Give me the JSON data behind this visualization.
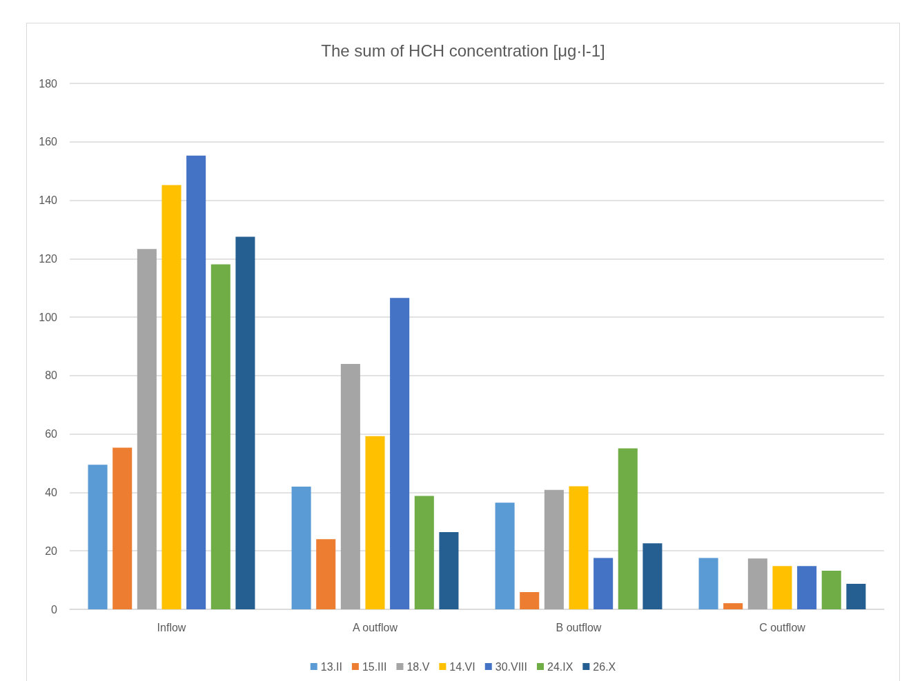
{
  "chart_data": {
    "type": "bar",
    "title": "The sum of HCH concentration [μg·l-1]",
    "categories": [
      "Inflow",
      "A outflow",
      "B outflow",
      "C outflow"
    ],
    "series": [
      {
        "name": "13.II",
        "color": "#5b9bd5",
        "values": [
          49.5,
          42,
          36.5,
          17.6
        ]
      },
      {
        "name": "15.III",
        "color": "#ed7d31",
        "values": [
          55.3,
          24,
          5.9,
          2.1
        ]
      },
      {
        "name": "18.V",
        "color": "#a5a5a5",
        "values": [
          123.3,
          84,
          40.9,
          17.4
        ]
      },
      {
        "name": "14.VI",
        "color": "#ffc000",
        "values": [
          145.2,
          59.3,
          42.1,
          14.8
        ]
      },
      {
        "name": "30.VIII",
        "color": "#4472c4",
        "values": [
          155.3,
          106.6,
          17.6,
          14.8
        ]
      },
      {
        "name": "24.IX",
        "color": "#70ad47",
        "values": [
          118.1,
          38.8,
          55.1,
          13.2
        ]
      },
      {
        "name": "26.X",
        "color": "#255e91",
        "values": [
          127.5,
          26.4,
          22.6,
          8.7
        ]
      }
    ],
    "ylim": [
      0,
      180
    ],
    "yticks": [
      0,
      20,
      40,
      60,
      80,
      100,
      120,
      140,
      160,
      180
    ],
    "grid": "y",
    "legend": "bottom"
  }
}
